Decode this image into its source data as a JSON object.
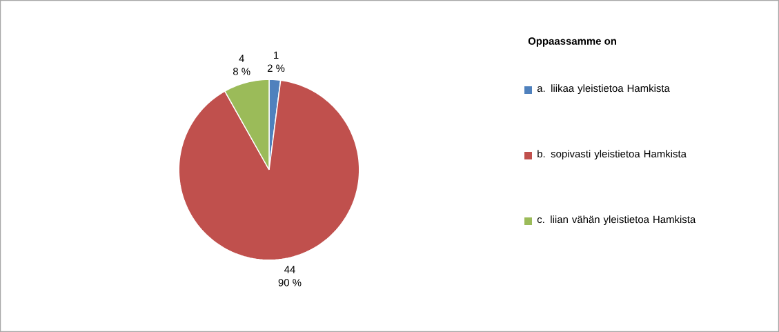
{
  "chart_data": {
    "type": "pie",
    "legend_title": "Oppaassamme on",
    "categories": [
      "a. liikaa yleistietoa Hamkista",
      "b. sopivasti yleistietoa Hamkista",
      "c. liian vähän yleistietoa Hamkista"
    ],
    "values": [
      1,
      44,
      4
    ],
    "colors": [
      "#4f81bd",
      "#c0504d",
      "#9bbb59"
    ],
    "data_labels": true,
    "annotations": [
      "2 %",
      "90 %",
      "8 %"
    ],
    "legend": "right"
  }
}
